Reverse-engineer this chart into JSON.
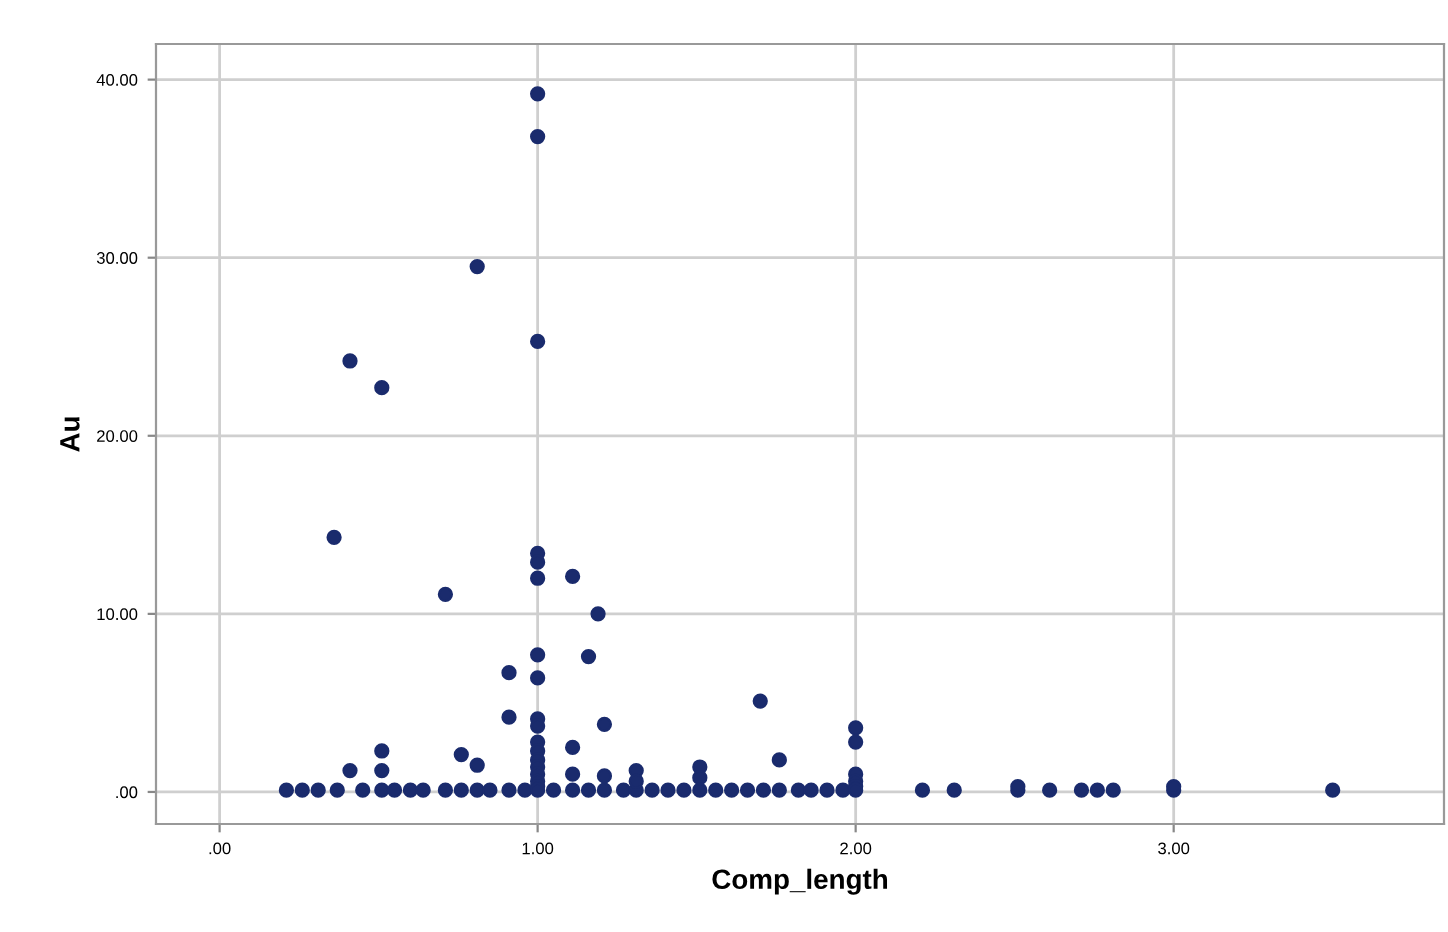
{
  "chart_data": {
    "type": "scatter",
    "xlabel": "Comp_length",
    "ylabel": "Au",
    "xlim": [
      -0.2,
      3.85
    ],
    "ylim": [
      -1.8,
      42
    ],
    "xticks": [
      {
        "value": 0,
        "label": ".00"
      },
      {
        "value": 1,
        "label": "1.00"
      },
      {
        "value": 2,
        "label": "2.00"
      },
      {
        "value": 3,
        "label": "3.00"
      }
    ],
    "yticks": [
      {
        "value": 0,
        "label": ".00"
      },
      {
        "value": 10,
        "label": "10.00"
      },
      {
        "value": 20,
        "label": "20.00"
      },
      {
        "value": 30,
        "label": "30.00"
      },
      {
        "value": 40,
        "label": "40.00"
      }
    ],
    "grid": true,
    "marker": "circle",
    "series": [
      {
        "color": "#1a2b6d",
        "x": [
          1.0,
          1.0,
          0.81,
          1.0,
          0.41,
          0.51,
          0.36,
          0.71,
          1.0,
          1.0,
          1.0,
          1.11,
          1.19,
          1.0,
          1.16,
          0.91,
          1.0,
          0.91,
          1.7,
          1.21,
          1.0,
          1.0,
          0.51,
          0.51,
          0.41,
          0.76,
          0.81,
          1.11,
          1.11,
          1.21,
          1.76,
          1.31,
          1.51,
          1.0,
          1.0,
          1.0,
          1.0,
          1.0,
          1.0,
          1.0,
          2.0,
          2.0,
          2.0,
          2.0,
          2.0,
          0.21,
          0.26,
          0.31,
          0.37,
          0.45,
          0.51,
          0.55,
          0.6,
          0.64,
          0.71,
          0.76,
          0.81,
          0.85,
          0.91,
          0.96,
          1.0,
          1.05,
          1.11,
          1.16,
          1.21,
          1.27,
          1.31,
          1.36,
          1.41,
          1.46,
          1.51,
          1.56,
          1.61,
          1.66,
          1.71,
          1.76,
          1.82,
          1.86,
          1.91,
          1.96,
          2.0,
          2.21,
          2.31,
          2.51,
          2.61,
          2.71,
          2.76,
          2.81,
          3.0,
          3.5,
          1.31,
          1.51,
          2.51,
          3.0
        ],
        "values": [
          39.2,
          36.8,
          29.5,
          25.3,
          24.2,
          22.7,
          14.3,
          11.1,
          13.4,
          12.9,
          12.0,
          12.1,
          10.0,
          7.7,
          7.6,
          6.7,
          6.4,
          4.2,
          5.1,
          3.8,
          4.1,
          3.7,
          2.3,
          1.2,
          1.2,
          2.1,
          1.5,
          2.5,
          1.0,
          0.9,
          1.8,
          1.2,
          1.4,
          2.8,
          2.3,
          1.8,
          1.4,
          1.0,
          0.6,
          0.3,
          3.6,
          2.8,
          1.0,
          0.6,
          0.3,
          0.1,
          0.1,
          0.1,
          0.1,
          0.1,
          0.1,
          0.1,
          0.1,
          0.1,
          0.1,
          0.1,
          0.1,
          0.1,
          0.1,
          0.1,
          0.1,
          0.1,
          0.1,
          0.1,
          0.1,
          0.1,
          0.1,
          0.1,
          0.1,
          0.1,
          0.1,
          0.1,
          0.1,
          0.1,
          0.1,
          0.1,
          0.1,
          0.1,
          0.1,
          0.1,
          0.1,
          0.1,
          0.1,
          0.1,
          0.1,
          0.1,
          0.1,
          0.1,
          0.1,
          0.1,
          0.6,
          0.8,
          0.3,
          0.3
        ]
      }
    ]
  }
}
